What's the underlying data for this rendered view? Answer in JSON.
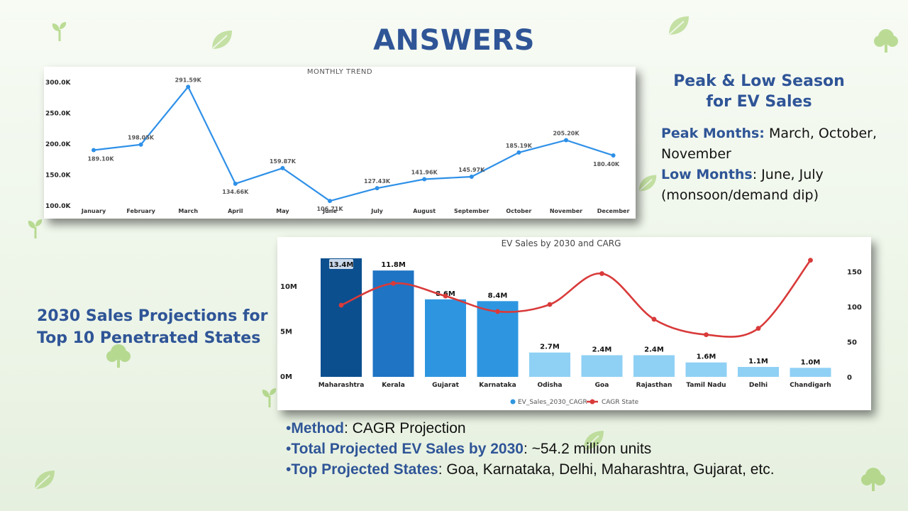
{
  "page": {
    "title": "ANSWERS",
    "colors": {
      "heading": "#2f5597",
      "line": "#2e90e8",
      "cagr": "#d93a3a"
    }
  },
  "season": {
    "heading_line1": "Peak & Low Season",
    "heading_line2": "for EV Sales",
    "peak_label": "Peak Months:",
    "peak_value": "March, October, November",
    "low_label": "Low Months",
    "low_value": ": June, July (monsoon/demand dip)"
  },
  "projection": {
    "heading_line1": "2030 Sales Projections for",
    "heading_line2": "Top 10 Penetrated States"
  },
  "bullets": [
    {
      "label": "Method",
      "value": ": CAGR Projection"
    },
    {
      "label": "Total Projected EV Sales by 2030",
      "value": ": ~54.2 million units"
    },
    {
      "label": "Top Projected States",
      "value": ": Goa, Karnataka, Delhi, Maharashtra, Gujarat, etc."
    }
  ],
  "chart_data": [
    {
      "type": "line",
      "title": "MONTHLY TREND",
      "categories": [
        "January",
        "February",
        "March",
        "April",
        "May",
        "June",
        "July",
        "August",
        "September",
        "October",
        "November",
        "December"
      ],
      "values": [
        189.1,
        198.05,
        291.59,
        134.66,
        159.87,
        106.71,
        127.43,
        141.96,
        145.97,
        185.19,
        205.2,
        180.4
      ],
      "data_labels": [
        "189.10K",
        "198.05K",
        "291.59K",
        "134.66K",
        "159.87K",
        "106.71K",
        "127.43K",
        "141.96K",
        "145.97K",
        "185.19K",
        "205.20K",
        "180.40K"
      ],
      "y_ticks": [
        "300.0K",
        "250.0K",
        "200.0K",
        "150.0K",
        "100.0K"
      ],
      "y_tick_values": [
        300,
        250,
        200,
        150,
        100
      ],
      "ylim": [
        100,
        300
      ],
      "grid": false,
      "color": "#2e90e8"
    },
    {
      "type": "bar",
      "title": "EV Sales by 2030 and CARG",
      "categories": [
        "Maharashtra",
        "Kerala",
        "Gujarat",
        "Karnataka",
        "Odisha",
        "Goa",
        "Rajasthan",
        "Tamil Nadu",
        "Delhi",
        "Chandigarh"
      ],
      "series": [
        {
          "name": "EV_Sales_2030_CAGR",
          "values": [
            13.4,
            11.8,
            8.6,
            8.4,
            2.7,
            2.4,
            2.4,
            1.6,
            1.1,
            1.0
          ]
        },
        {
          "name": "CAGR State",
          "values": [
            102,
            133,
            115,
            93,
            103,
            147,
            82,
            60,
            69,
            166
          ]
        }
      ],
      "data_labels": [
        "13.4M",
        "11.8M",
        "8.6M",
        "8.4M",
        "2.7M",
        "2.4M",
        "2.4M",
        "1.6M",
        "1.1M",
        "1.0M"
      ],
      "bar_colors": [
        "#0b4f8f",
        "#1f74c4",
        "#2e96e0",
        "#2e96e0",
        "#8fd0f5",
        "#8fd0f5",
        "#8fd0f5",
        "#8fd0f5",
        "#8fd0f5",
        "#8fd0f5"
      ],
      "cagr_color": "#d93a3a",
      "y_left_ticks": [
        "10M",
        "5M",
        "0M"
      ],
      "y_left_tick_values": [
        10,
        5,
        0
      ],
      "y_right_ticks": [
        "150",
        "100",
        "50",
        "0"
      ],
      "y_right_tick_values": [
        150,
        100,
        50,
        0
      ],
      "ylim_left": [
        0,
        13.4
      ],
      "ylim_right": [
        0,
        180
      ],
      "legend_position": "bottom"
    }
  ]
}
